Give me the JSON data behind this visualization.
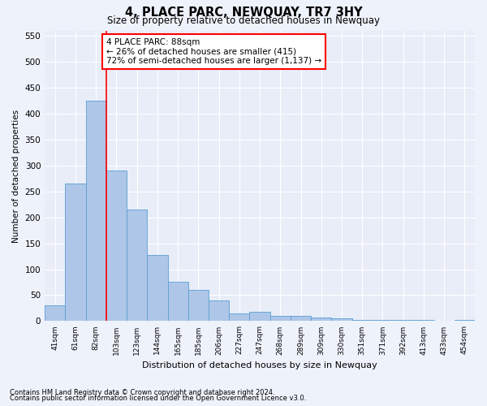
{
  "title": "4, PLACE PARC, NEWQUAY, TR7 3HY",
  "subtitle": "Size of property relative to detached houses in Newquay",
  "xlabel": "Distribution of detached houses by size in Newquay",
  "ylabel": "Number of detached properties",
  "categories": [
    "41sqm",
    "61sqm",
    "82sqm",
    "103sqm",
    "123sqm",
    "144sqm",
    "165sqm",
    "185sqm",
    "206sqm",
    "227sqm",
    "247sqm",
    "268sqm",
    "289sqm",
    "309sqm",
    "330sqm",
    "351sqm",
    "371sqm",
    "392sqm",
    "413sqm",
    "433sqm",
    "454sqm"
  ],
  "values": [
    30,
    265,
    425,
    290,
    215,
    128,
    76,
    60,
    40,
    14,
    18,
    10,
    10,
    7,
    5,
    3,
    2,
    2,
    2,
    1,
    2
  ],
  "bar_color": "#aec6e8",
  "bar_edge_color": "#5a9fd4",
  "red_line_index": 2,
  "annotation_text": "4 PLACE PARC: 88sqm\n← 26% of detached houses are smaller (415)\n72% of semi-detached houses are larger (1,137) →",
  "ylim": [
    0,
    560
  ],
  "yticks": [
    0,
    50,
    100,
    150,
    200,
    250,
    300,
    350,
    400,
    450,
    500,
    550
  ],
  "footnote1": "Contains HM Land Registry data © Crown copyright and database right 2024.",
  "footnote2": "Contains public sector information licensed under the Open Government Licence v3.0.",
  "bg_color": "#eef2fb",
  "plot_bg_color": "#e8edf8"
}
